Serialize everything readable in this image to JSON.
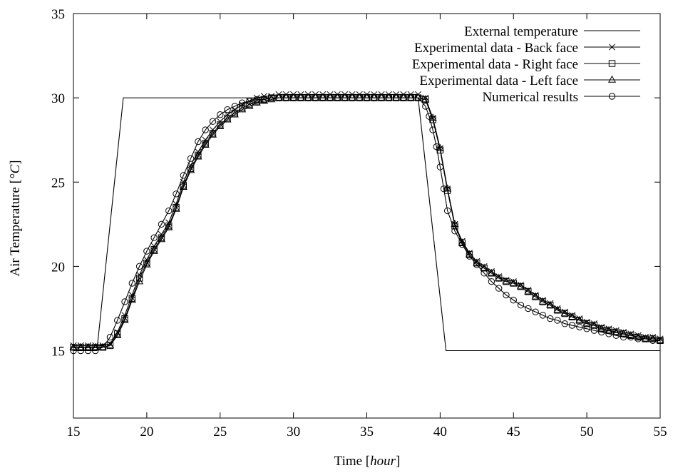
{
  "chart_data": {
    "type": "line",
    "xlabel": "Time [hour]",
    "xlabel_parts": {
      "prefix": "Time [",
      "unit": "hour",
      "suffix": "]"
    },
    "ylabel": "Air Temperature [°C]",
    "ylabel_parts": {
      "prefix": "Air Temperature [",
      "unit": "°C",
      "suffix": "]"
    },
    "xlim": [
      15,
      55
    ],
    "ylim": [
      11,
      35
    ],
    "x_ticks": [
      15,
      20,
      25,
      30,
      35,
      40,
      45,
      50,
      55
    ],
    "y_ticks": [
      15,
      20,
      25,
      30,
      35
    ],
    "grid": false,
    "legend_position": "top-right",
    "series": [
      {
        "name": "External temperature",
        "marker": "none",
        "x": [
          15,
          16.6,
          18.4,
          38.5,
          40.4,
          55
        ],
        "y": [
          15,
          15,
          30,
          30,
          15,
          15
        ]
      },
      {
        "name": "Experimental data - Back face",
        "marker": "cross",
        "x": [
          15,
          15.5,
          16,
          16.5,
          17,
          17.5,
          18,
          18.5,
          19,
          19.5,
          20,
          20.5,
          21,
          21.5,
          22,
          22.5,
          23,
          23.5,
          24,
          24.5,
          25,
          25.5,
          26,
          26.5,
          27,
          27.5,
          28,
          28.5,
          29,
          29.5,
          30,
          30.5,
          31,
          31.5,
          32,
          32.5,
          33,
          33.5,
          34,
          34.5,
          35,
          35.5,
          36,
          36.5,
          37,
          37.5,
          38,
          38.5,
          39,
          39.5,
          40,
          40.5,
          41,
          41.5,
          42,
          42.5,
          43,
          43.5,
          44,
          44.5,
          45,
          45.5,
          46,
          46.5,
          47,
          47.5,
          48,
          48.5,
          49,
          49.5,
          50,
          50.5,
          51,
          51.5,
          52,
          52.5,
          53,
          53.5,
          54,
          54.5,
          55
        ],
        "y": [
          15.3,
          15.3,
          15.3,
          15.3,
          15.3,
          15.4,
          16.1,
          17.1,
          18.3,
          19.5,
          20.4,
          21.2,
          21.9,
          22.6,
          23.7,
          25.0,
          26.0,
          26.8,
          27.5,
          28.1,
          28.6,
          29.0,
          29.3,
          29.6,
          29.8,
          30.0,
          30.1,
          30.1,
          30.2,
          30.2,
          30.2,
          30.2,
          30.2,
          30.2,
          30.2,
          30.2,
          30.2,
          30.2,
          30.2,
          30.2,
          30.2,
          30.2,
          30.2,
          30.2,
          30.2,
          30.2,
          30.2,
          30.2,
          30.0,
          28.8,
          27.0,
          24.6,
          22.5,
          21.5,
          20.8,
          20.3,
          20.0,
          19.7,
          19.4,
          19.2,
          19.1,
          18.9,
          18.6,
          18.3,
          18.0,
          17.8,
          17.5,
          17.3,
          17.1,
          16.9,
          16.7,
          16.6,
          16.4,
          16.3,
          16.2,
          16.1,
          16.0,
          15.9,
          15.8,
          15.8,
          15.7
        ]
      },
      {
        "name": "Experimental data - Right face",
        "marker": "square",
        "x": [
          15,
          15.5,
          16,
          16.5,
          17,
          17.5,
          18,
          18.5,
          19,
          19.5,
          20,
          20.5,
          21,
          21.5,
          22,
          22.5,
          23,
          23.5,
          24,
          24.5,
          25,
          25.5,
          26,
          26.5,
          27,
          27.5,
          28,
          28.5,
          29,
          29.5,
          30,
          30.5,
          31,
          31.5,
          32,
          32.5,
          33,
          33.5,
          34,
          34.5,
          35,
          35.5,
          36,
          36.5,
          37,
          37.5,
          38,
          38.5,
          39,
          39.5,
          40,
          40.5,
          41,
          41.5,
          42,
          42.5,
          43,
          43.5,
          44,
          44.5,
          45,
          45.5,
          46,
          46.5,
          47,
          47.5,
          48,
          48.5,
          49,
          49.5,
          50,
          50.5,
          51,
          51.5,
          52,
          52.5,
          53,
          53.5,
          54,
          54.5,
          55
        ],
        "y": [
          15.2,
          15.2,
          15.2,
          15.2,
          15.2,
          15.3,
          16.0,
          16.9,
          18.1,
          19.3,
          20.2,
          21.0,
          21.7,
          22.4,
          23.5,
          24.8,
          25.8,
          26.6,
          27.3,
          27.9,
          28.4,
          28.8,
          29.1,
          29.4,
          29.6,
          29.8,
          29.9,
          30.0,
          30.0,
          30.0,
          30.0,
          30.0,
          30.0,
          30.0,
          30.0,
          30.0,
          30.0,
          30.0,
          30.0,
          30.0,
          30.0,
          30.0,
          30.0,
          30.0,
          30.0,
          30.0,
          30.0,
          30.0,
          29.9,
          28.7,
          26.9,
          24.5,
          22.4,
          21.4,
          20.7,
          20.2,
          19.9,
          19.6,
          19.3,
          19.1,
          19.0,
          18.8,
          18.5,
          18.2,
          17.9,
          17.7,
          17.4,
          17.2,
          17.0,
          16.8,
          16.6,
          16.5,
          16.3,
          16.2,
          16.1,
          16.0,
          15.9,
          15.8,
          15.7,
          15.7,
          15.6
        ]
      },
      {
        "name": "Experimental data - Left face",
        "marker": "triangle",
        "x": [
          15,
          15.5,
          16,
          16.5,
          17,
          17.5,
          18,
          18.5,
          19,
          19.5,
          20,
          20.5,
          21,
          21.5,
          22,
          22.5,
          23,
          23.5,
          24,
          24.5,
          25,
          25.5,
          26,
          26.5,
          27,
          27.5,
          28,
          28.5,
          29,
          29.5,
          30,
          30.5,
          31,
          31.5,
          32,
          32.5,
          33,
          33.5,
          34,
          34.5,
          35,
          35.5,
          36,
          36.5,
          37,
          37.5,
          38,
          38.5,
          39,
          39.5,
          40,
          40.5,
          41,
          41.5,
          42,
          42.5,
          43,
          43.5,
          44,
          44.5,
          45,
          45.5,
          46,
          46.5,
          47,
          47.5,
          48,
          48.5,
          49,
          49.5,
          50,
          50.5,
          51,
          51.5,
          52,
          52.5,
          53,
          53.5,
          54,
          54.5,
          55
        ],
        "y": [
          15.2,
          15.2,
          15.2,
          15.2,
          15.2,
          15.3,
          15.9,
          16.8,
          18.0,
          19.1,
          20.1,
          20.9,
          21.6,
          22.3,
          23.4,
          24.7,
          25.7,
          26.5,
          27.2,
          27.8,
          28.3,
          28.7,
          29.0,
          29.3,
          29.5,
          29.7,
          29.8,
          29.9,
          30.0,
          30.0,
          30.0,
          30.0,
          30.0,
          30.0,
          30.0,
          30.0,
          30.0,
          30.0,
          30.0,
          30.0,
          30.0,
          30.0,
          30.0,
          30.0,
          30.0,
          30.0,
          30.0,
          30.0,
          29.9,
          28.8,
          27.0,
          24.6,
          22.5,
          21.4,
          20.7,
          20.2,
          19.9,
          19.6,
          19.3,
          19.1,
          19.0,
          18.8,
          18.5,
          18.2,
          17.9,
          17.7,
          17.4,
          17.2,
          17.0,
          16.8,
          16.6,
          16.5,
          16.3,
          16.2,
          16.1,
          16.0,
          15.9,
          15.8,
          15.7,
          15.7,
          15.6
        ]
      },
      {
        "name": "Numerical results",
        "marker": "circle",
        "x": [
          15,
          15.5,
          16,
          16.5,
          17,
          17.5,
          18,
          18.5,
          19,
          19.5,
          20,
          20.5,
          21,
          21.5,
          22,
          22.5,
          23,
          23.5,
          24,
          24.5,
          25,
          25.5,
          26,
          26.5,
          27,
          27.5,
          28,
          28.5,
          29,
          29.5,
          30,
          30.5,
          31,
          31.5,
          32,
          32.5,
          33,
          33.5,
          34,
          34.5,
          35,
          35.5,
          36,
          36.5,
          37,
          37.5,
          38,
          38.5,
          39,
          39.25,
          39.5,
          39.75,
          40,
          40.25,
          40.5,
          41,
          41.5,
          42,
          42.5,
          43,
          43.5,
          44,
          44.5,
          45,
          45.5,
          46,
          46.5,
          47,
          47.5,
          48,
          48.5,
          49,
          49.5,
          50,
          50.5,
          51,
          51.5,
          52,
          52.5,
          53,
          53.5,
          54,
          54.5,
          55
        ],
        "y": [
          15.0,
          15.0,
          15.0,
          15.0,
          15.2,
          15.8,
          16.8,
          17.9,
          19.0,
          20.0,
          20.9,
          21.7,
          22.5,
          23.3,
          24.3,
          25.4,
          26.4,
          27.4,
          28.1,
          28.6,
          29.0,
          29.3,
          29.5,
          29.7,
          29.8,
          29.9,
          29.9,
          30.0,
          30.0,
          30.0,
          30.0,
          30.0,
          30.0,
          30.0,
          30.0,
          30.0,
          30.0,
          30.0,
          30.0,
          30.0,
          30.0,
          30.0,
          30.0,
          30.0,
          30.0,
          30.0,
          30.0,
          30.0,
          29.5,
          28.9,
          28.1,
          27.1,
          25.9,
          24.6,
          23.3,
          22.1,
          21.3,
          20.6,
          20.1,
          19.6,
          19.1,
          18.7,
          18.3,
          18.0,
          17.7,
          17.5,
          17.3,
          17.1,
          16.9,
          16.8,
          16.6,
          16.5,
          16.4,
          16.3,
          16.2,
          16.1,
          16.0,
          15.9,
          15.8,
          15.8,
          15.7,
          15.7,
          15.6,
          15.6
        ]
      }
    ]
  }
}
